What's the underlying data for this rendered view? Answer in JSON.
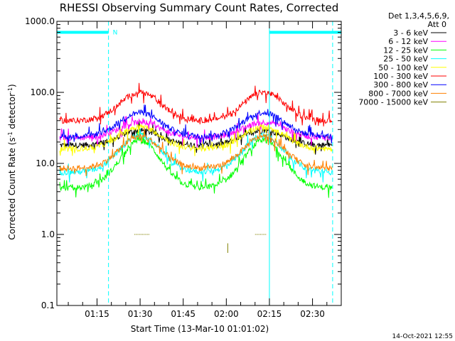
{
  "chart_data": {
    "type": "line",
    "title": "RHESSI Observing Summary Count Rates, Corrected",
    "xlabel": "Start Time (13-Mar-10 01:01:02)",
    "ylabel": "Corrected Count Rate (s",
    "ylabel_sup1": "-1",
    "ylabel_mid": " detector",
    "ylabel_sup2": "-1",
    "ylabel_end": ")",
    "y_scale": "log",
    "ylim": [
      0.1,
      1000
    ],
    "y_ticks": [
      "0.1",
      "1.0",
      "10.0",
      "100.0",
      "1000.0"
    ],
    "xlim_minutes": [
      61.03,
      160
    ],
    "x_ticks": [
      {
        "label": "01:15",
        "minute": 75
      },
      {
        "label": "01:30",
        "minute": 90
      },
      {
        "label": "01:45",
        "minute": 105
      },
      {
        "label": "02:00",
        "minute": 120
      },
      {
        "label": "02:15",
        "minute": 135
      },
      {
        "label": "02:30",
        "minute": 150
      }
    ],
    "legend": {
      "header1": "Det 1,3,4,5,6,9,",
      "header2": "Att 0",
      "placement": "right"
    },
    "series": [
      {
        "name": "3 - 6 keV",
        "color": "#000000",
        "base": 18,
        "peak": 29
      },
      {
        "name": "6 - 12 keV",
        "color": "#ff00ff",
        "base": 23,
        "peak": 38
      },
      {
        "name": "12 - 25 keV",
        "color": "#00ff00",
        "base": 4.5,
        "peak": 21
      },
      {
        "name": "25 - 50 keV",
        "color": "#00ffff",
        "base": 7.5,
        "peak": 25
      },
      {
        "name": "50 - 100 keV",
        "color": "#ffff00",
        "base": 16,
        "peak": 33
      },
      {
        "name": "100 - 300 keV",
        "color": "#ff0000",
        "base": 40,
        "peak": 100
      },
      {
        "name": "300 - 800 keV",
        "color": "#0000ff",
        "base": 24,
        "peak": 52
      },
      {
        "name": "800 - 7000 keV",
        "color": "#ff8000",
        "base": 8.5,
        "peak": 24
      },
      {
        "name": "7000 - 15000 keV",
        "color": "#808000",
        "base": 1.0,
        "peak": 1.0
      }
    ],
    "orbit_peaks_minutes": [
      90,
      133
    ],
    "data_gaps_minutes": [
      [
        61.03,
        62
      ],
      [
        157,
        160
      ]
    ],
    "night_markers": {
      "level": 700,
      "segments_minutes": [
        [
          61.03,
          79
        ],
        [
          135,
          160
        ]
      ],
      "label": "N",
      "dashed_minutes": [
        79,
        157
      ],
      "solid_minutes": [
        61.03,
        135
      ]
    },
    "timestamp": "14-Oct-2021 12:55"
  }
}
